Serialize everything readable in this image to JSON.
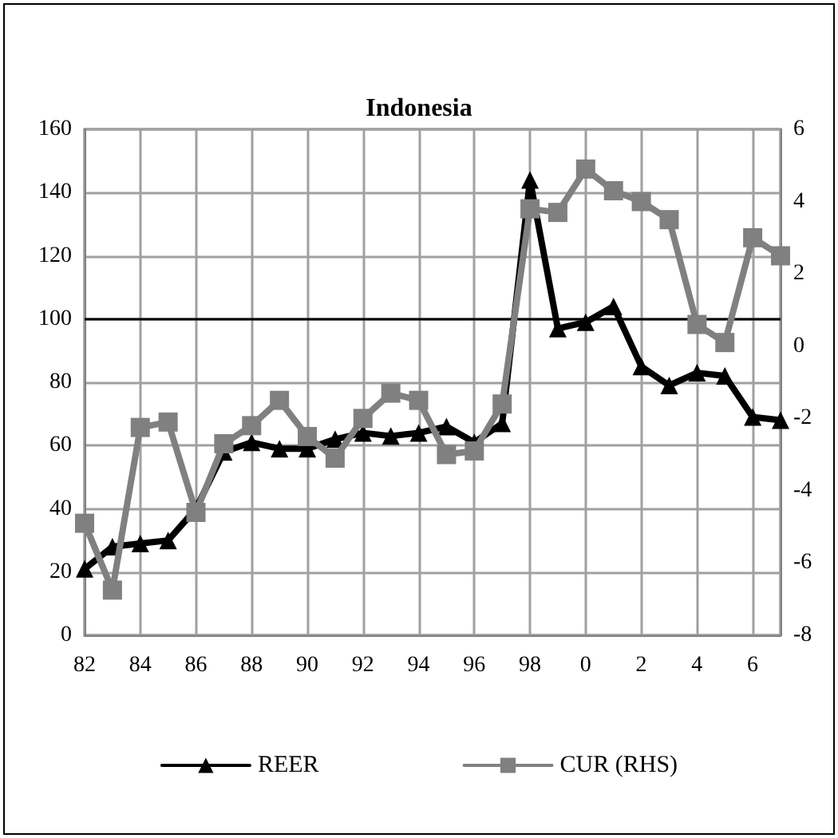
{
  "chart_data": {
    "type": "line",
    "title": "Indonesia",
    "categories": [
      "82",
      null,
      "84",
      null,
      "86",
      null,
      "88",
      null,
      "90",
      null,
      "92",
      null,
      "94",
      null,
      "96",
      null,
      "98",
      null,
      "0",
      null,
      "2",
      null,
      "4",
      null,
      "6",
      null
    ],
    "series": [
      {
        "name": "REER",
        "color": "#000000",
        "marker": "triangle",
        "values": [
          21,
          28,
          29,
          30,
          40,
          58,
          61,
          59,
          59,
          62,
          64,
          63,
          64,
          66,
          61,
          67,
          144,
          97,
          99,
          104,
          85,
          79,
          83,
          82,
          69,
          68
        ]
      },
      {
        "name": "CUR (RHS)",
        "color": "#808080",
        "marker": "square",
        "axis": "y2",
        "values": [
          -4.9,
          -6.75,
          -2.25,
          -2.1,
          -4.6,
          -2.7,
          -2.2,
          -1.5,
          -2.5,
          -3.1,
          -2.0,
          -1.3,
          -1.5,
          -3.0,
          -2.9,
          -1.6,
          3.8,
          3.7,
          4.9,
          4.3,
          4.0,
          3.5,
          0.6,
          0.1,
          3.0,
          2.5
        ]
      }
    ],
    "ylim": [
      0,
      160
    ],
    "yticks": [
      0,
      20,
      40,
      60,
      80,
      100,
      120,
      140,
      160
    ],
    "y2lim": [
      -8,
      6
    ],
    "y2ticks": [
      -8,
      -6,
      -4,
      -2,
      0,
      2,
      4,
      6
    ],
    "ref_lines": [
      {
        "axis": "y",
        "value": 100,
        "color": "#000000"
      }
    ],
    "grid": true,
    "legend": "bottom",
    "line_style": "solid"
  }
}
